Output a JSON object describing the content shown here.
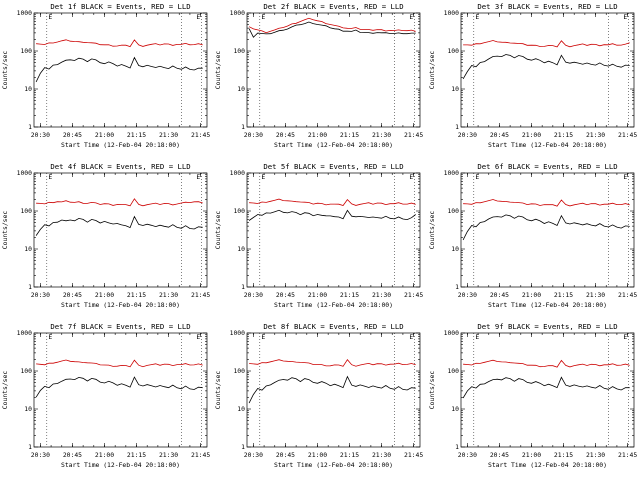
{
  "page": {
    "background": "#ffffff"
  },
  "chart_data": {
    "type": "line",
    "yscale": "log",
    "ylim": [
      1,
      1000
    ],
    "grid": false,
    "ylabel": "Counts/sec",
    "xlabel": "Start Time (12-Feb-04 20:18:00)",
    "x_domain_minutes": [
      27,
      108
    ],
    "x_ticks": [
      {
        "minute": 30,
        "label": "20:30"
      },
      {
        "minute": 45,
        "label": "20:45"
      },
      {
        "minute": 60,
        "label": "21:00"
      },
      {
        "minute": 75,
        "label": "21:15"
      },
      {
        "minute": 90,
        "label": "21:30"
      },
      {
        "minute": 105,
        "label": "21:45"
      }
    ],
    "y_ticks": [
      1,
      10,
      100,
      1000
    ],
    "event_lines": [
      {
        "minute": 33,
        "label": "E"
      },
      {
        "minute": 96,
        "label": ""
      },
      {
        "minute": 105.5,
        "label": "E"
      }
    ],
    "colors": {
      "lld": "#cc0000",
      "events": "#000000"
    },
    "series_legend": {
      "black": "Events",
      "red": "LLD"
    },
    "panels": [
      {
        "id": "1f",
        "title": "Det 1f BLACK = Events, RED = LLD",
        "lld": [
          150,
          156,
          148,
          160,
          168,
          175,
          183,
          190,
          186,
          178,
          172,
          176,
          168,
          162,
          155,
          150,
          146,
          142,
          139,
          137,
          141,
          137,
          134,
          196,
          141,
          137,
          144,
          148,
          151,
          147,
          154,
          149,
          146,
          151,
          148,
          153,
          149,
          147,
          152,
          150
        ],
        "events": [
          15,
          27,
          37,
          33,
          41,
          45,
          51,
          56,
          61,
          57,
          64,
          59,
          54,
          62,
          57,
          51,
          47,
          51,
          45,
          41,
          44,
          39,
          37,
          68,
          41,
          37,
          43,
          39,
          36,
          41,
          37,
          34,
          39,
          36,
          33,
          37,
          34,
          32,
          35,
          34
        ]
      },
      {
        "id": "2f",
        "title": "Det 2f BLACK = Events, RED = LLD",
        "lld": [
          420,
          390,
          360,
          330,
          315,
          335,
          355,
          385,
          425,
          455,
          505,
          555,
          605,
          660,
          700,
          680,
          625,
          585,
          545,
          505,
          465,
          435,
          415,
          395,
          385,
          430,
          375,
          365,
          355,
          360,
          365,
          355,
          348,
          352,
          342,
          347,
          352,
          342,
          347,
          340
        ],
        "events": [
          380,
          240,
          300,
          285,
          272,
          292,
          312,
          335,
          365,
          385,
          425,
          465,
          505,
          525,
          565,
          545,
          505,
          475,
          445,
          415,
          385,
          365,
          345,
          335,
          325,
          345,
          315,
          305,
          298,
          303,
          308,
          298,
          292,
          296,
          288,
          292,
          296,
          288,
          292,
          285
        ]
      },
      {
        "id": "3f",
        "title": "Det 3f BLACK = Events, RED = LLD",
        "lld": [
          140,
          148,
          142,
          152,
          160,
          168,
          175,
          182,
          178,
          170,
          165,
          168,
          162,
          156,
          150,
          145,
          142,
          138,
          136,
          134,
          138,
          134,
          131,
          185,
          138,
          134,
          140,
          144,
          148,
          144,
          150,
          146,
          142,
          148,
          144,
          150,
          146,
          143,
          148,
          170
        ],
        "events": [
          18,
          30,
          42,
          38,
          48,
          54,
          62,
          70,
          76,
          72,
          80,
          74,
          68,
          76,
          70,
          63,
          58,
          62,
          55,
          50,
          54,
          48,
          45,
          78,
          50,
          46,
          52,
          48,
          44,
          50,
          45,
          42,
          47,
          43,
          40,
          44,
          41,
          38,
          42,
          40
        ]
      },
      {
        "id": "4f",
        "title": "Det 4f BLACK = Events, RED = LLD",
        "lld": [
          155,
          162,
          154,
          165,
          172,
          178,
          172,
          180,
          175,
          168,
          172,
          165,
          160,
          166,
          158,
          152,
          156,
          150,
          146,
          150,
          146,
          142,
          140,
          210,
          146,
          142,
          148,
          152,
          156,
          152,
          158,
          153,
          150,
          155,
          160,
          165,
          170,
          175,
          172,
          168
        ],
        "events": [
          22,
          34,
          44,
          40,
          48,
          52,
          58,
          54,
          60,
          56,
          63,
          58,
          52,
          60,
          55,
          50,
          54,
          48,
          44,
          48,
          43,
          40,
          38,
          72,
          44,
          40,
          46,
          42,
          38,
          44,
          40,
          37,
          42,
          38,
          35,
          40,
          36,
          34,
          38,
          36
        ]
      },
      {
        "id": "5f",
        "title": "Det 5f BLACK = Events, RED = LLD",
        "lld": [
          160,
          166,
          158,
          168,
          175,
          182,
          190,
          198,
          192,
          185,
          178,
          182,
          175,
          168,
          162,
          156,
          160,
          154,
          150,
          154,
          150,
          146,
          143,
          200,
          150,
          146,
          152,
          156,
          160,
          155,
          162,
          157,
          153,
          158,
          154,
          160,
          156,
          152,
          158,
          155
        ],
        "events": [
          55,
          70,
          82,
          76,
          86,
          90,
          96,
          102,
          96,
          90,
          95,
          88,
          82,
          90,
          85,
          78,
          82,
          76,
          72,
          76,
          71,
          68,
          65,
          105,
          72,
          68,
          74,
          70,
          66,
          72,
          68,
          64,
          70,
          66,
          62,
          68,
          64,
          60,
          66,
          78
        ]
      },
      {
        "id": "6f",
        "title": "Det 6f BLACK = Events, RED = LLD",
        "lld": [
          150,
          158,
          150,
          162,
          170,
          178,
          186,
          194,
          188,
          180,
          174,
          178,
          170,
          164,
          157,
          151,
          155,
          149,
          145,
          149,
          145,
          141,
          138,
          195,
          145,
          141,
          147,
          151,
          155,
          150,
          157,
          152,
          148,
          153,
          149,
          155,
          151,
          147,
          153,
          150
        ],
        "events": [
          17,
          30,
          42,
          38,
          48,
          54,
          62,
          68,
          74,
          70,
          78,
          72,
          66,
          74,
          68,
          61,
          56,
          60,
          53,
          48,
          52,
          46,
          43,
          76,
          48,
          44,
          50,
          46,
          42,
          48,
          43,
          40,
          45,
          41,
          38,
          42,
          39,
          36,
          40,
          38
        ]
      },
      {
        "id": "7f",
        "title": "Det 7f BLACK = Events, RED = LLD",
        "lld": [
          148,
          154,
          146,
          158,
          166,
          173,
          181,
          188,
          184,
          176,
          170,
          174,
          166,
          160,
          153,
          148,
          144,
          140,
          137,
          135,
          139,
          135,
          132,
          192,
          139,
          135,
          142,
          146,
          149,
          145,
          152,
          147,
          144,
          149,
          146,
          151,
          147,
          145,
          150,
          148
        ],
        "events": [
          20,
          32,
          40,
          36,
          44,
          48,
          54,
          59,
          64,
          60,
          67,
          62,
          56,
          64,
          59,
          53,
          49,
          53,
          47,
          43,
          46,
          41,
          39,
          70,
          43,
          39,
          45,
          41,
          37,
          43,
          39,
          36,
          41,
          37,
          34,
          39,
          35,
          33,
          37,
          35
        ]
      },
      {
        "id": "8f",
        "title": "Det 8f BLACK = Events, RED = LLD",
        "lld": [
          152,
          158,
          150,
          162,
          170,
          177,
          185,
          192,
          188,
          180,
          174,
          178,
          170,
          164,
          157,
          152,
          148,
          144,
          141,
          139,
          143,
          139,
          136,
          198,
          143,
          139,
          146,
          150,
          153,
          149,
          156,
          151,
          148,
          153,
          150,
          155,
          151,
          149,
          154,
          152
        ],
        "events": [
          14,
          25,
          35,
          31,
          39,
          44,
          50,
          56,
          62,
          58,
          66,
          60,
          54,
          63,
          58,
          52,
          48,
          52,
          46,
          42,
          45,
          40,
          38,
          72,
          42,
          38,
          44,
          40,
          36,
          42,
          38,
          35,
          40,
          36,
          33,
          38,
          34,
          32,
          36,
          34
        ]
      },
      {
        "id": "9f",
        "title": "Det 9f BLACK = Events, RED = LLD",
        "lld": [
          146,
          152,
          144,
          156,
          164,
          171,
          179,
          186,
          182,
          174,
          168,
          172,
          164,
          158,
          151,
          146,
          142,
          138,
          135,
          133,
          137,
          133,
          130,
          190,
          137,
          133,
          140,
          144,
          147,
          143,
          150,
          145,
          142,
          147,
          144,
          149,
          145,
          143,
          148,
          146
        ],
        "events": [
          19,
          31,
          39,
          35,
          43,
          47,
          53,
          58,
          63,
          59,
          66,
          61,
          55,
          63,
          58,
          52,
          48,
          52,
          46,
          42,
          45,
          40,
          38,
          69,
          42,
          38,
          44,
          40,
          37,
          42,
          38,
          35,
          40,
          36,
          33,
          38,
          35,
          32,
          36,
          35
        ]
      }
    ]
  }
}
